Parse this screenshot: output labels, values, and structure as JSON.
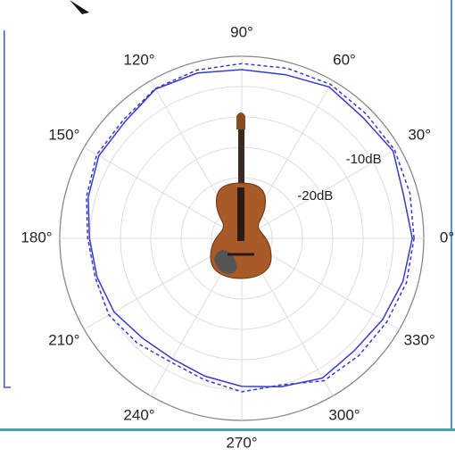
{
  "chart_data": {
    "type": "polar",
    "theta": [
      0,
      15,
      30,
      45,
      60,
      75,
      90,
      105,
      120,
      135,
      150,
      165,
      180,
      195,
      210,
      225,
      240,
      255,
      270,
      285,
      300,
      315,
      330,
      345
    ],
    "series": [
      {
        "color": "#3a3acb",
        "linestyle": "solid",
        "values": [
          -1.9,
          -2.4,
          -1.2,
          -1.8,
          -1.2,
          -2.1,
          -2.2,
          -1.8,
          -1.6,
          -2.8,
          -2.8,
          -3.8,
          -4.9,
          -5.3,
          -5.7,
          -6.8,
          -7.1,
          -6.5,
          -5.6,
          -4.7,
          -3.4,
          -3.8,
          -3.2,
          -2.5
        ]
      },
      {
        "color": "#3a3acb",
        "linestyle": "dashed",
        "values": [
          -1.6,
          -1.3,
          -0.9,
          -1.0,
          -0.7,
          -1.0,
          -1.2,
          -1.3,
          -1.5,
          -2.4,
          -2.4,
          -3.5,
          -4.6,
          -5.0,
          -4.7,
          -5.6,
          -6.5,
          -5.9,
          -4.7,
          -5.0,
          -2.9,
          -2.7,
          -2.4,
          -1.9
        ]
      }
    ],
    "rlim": [
      -30,
      0
    ],
    "rticks": [
      {
        "value": -25,
        "label": null
      },
      {
        "value": -20,
        "label": "-20dB"
      },
      {
        "value": -15,
        "label": null
      },
      {
        "value": -10,
        "label": "-10dB"
      },
      {
        "value": -5,
        "label": null
      }
    ],
    "thetaticks": [
      {
        "value": 0,
        "label": "0°"
      },
      {
        "value": 30,
        "label": "30°"
      },
      {
        "value": 60,
        "label": "60°"
      },
      {
        "value": 90,
        "label": "90°"
      },
      {
        "value": 120,
        "label": "120°"
      },
      {
        "value": 150,
        "label": "150°"
      },
      {
        "value": 180,
        "label": "180°"
      },
      {
        "value": 210,
        "label": "210°"
      },
      {
        "value": 240,
        "label": "240°"
      },
      {
        "value": 270,
        "label": "270°"
      },
      {
        "value": 300,
        "label": "300°"
      },
      {
        "value": 330,
        "label": "330°"
      }
    ],
    "grid": true
  }
}
